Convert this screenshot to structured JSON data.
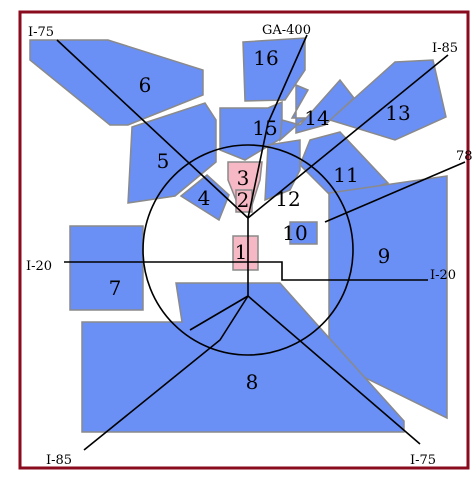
{
  "colors": {
    "frame": "#8a0a1e",
    "region_fill": "#6a8ff5",
    "region_stroke": "#8a8a8a",
    "highlight_fill": "#f5b8c4",
    "highlight_stroke": "#8a8a8a",
    "road": "#000000",
    "ring": "#000000"
  },
  "regions": [
    {
      "id": "1",
      "label": "1",
      "highlighted": true
    },
    {
      "id": "2",
      "label": "2",
      "highlighted": true
    },
    {
      "id": "3",
      "label": "3",
      "highlighted": true
    },
    {
      "id": "4",
      "label": "4",
      "highlighted": false
    },
    {
      "id": "5",
      "label": "5",
      "highlighted": false
    },
    {
      "id": "6",
      "label": "6",
      "highlighted": false
    },
    {
      "id": "7",
      "label": "7",
      "highlighted": false
    },
    {
      "id": "8",
      "label": "8",
      "highlighted": false
    },
    {
      "id": "9",
      "label": "9",
      "highlighted": false
    },
    {
      "id": "10",
      "label": "10",
      "highlighted": false
    },
    {
      "id": "11",
      "label": "11",
      "highlighted": false
    },
    {
      "id": "12",
      "label": "12",
      "highlighted": false
    },
    {
      "id": "13",
      "label": "13",
      "highlighted": false
    },
    {
      "id": "14",
      "label": "14",
      "highlighted": false
    },
    {
      "id": "15",
      "label": "15",
      "highlighted": false
    },
    {
      "id": "16",
      "label": "16",
      "highlighted": false
    }
  ],
  "roads": {
    "i75_nw": "I-75",
    "ga400": "GA-400",
    "i85_ne": "I-85",
    "rt78": "78",
    "i20_w": "I-20",
    "i20_e": "I-20",
    "i85_sw": "I-85",
    "i75_se": "I-75"
  }
}
